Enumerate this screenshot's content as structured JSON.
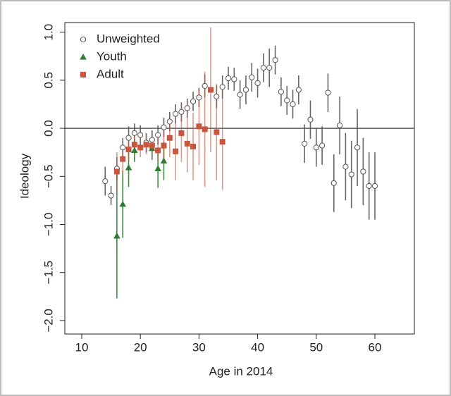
{
  "chart_data": {
    "type": "scatter",
    "xlabel": "Age in 2014",
    "ylabel": "Ideology",
    "xlim": [
      7.12,
      66.73
    ],
    "ylim": [
      -2.14,
      1.1
    ],
    "xticks": [
      10,
      20,
      30,
      40,
      50,
      60
    ],
    "yticks": [
      {
        "value": 1.0,
        "label": "1.0"
      },
      {
        "value": 0.5,
        "label": "0.5"
      },
      {
        "value": 0.0,
        "label": "0.0"
      },
      {
        "value": -0.5,
        "label": "−0.5"
      },
      {
        "value": -1.0,
        "label": "−1.0"
      },
      {
        "value": -1.5,
        "label": "−1.5"
      },
      {
        "value": -2.0,
        "label": "−2.0"
      }
    ],
    "hline": 0,
    "legend": "top-left",
    "series": [
      {
        "name": "Unweighted",
        "marker": "circle",
        "color": "#555555",
        "x": [
          14,
          15,
          16,
          17,
          18,
          19,
          20,
          21,
          22,
          23,
          24,
          25,
          26,
          27,
          28,
          29,
          30,
          31,
          33,
          34,
          35,
          36,
          37,
          38,
          39,
          40,
          41,
          42,
          43,
          44,
          45,
          46,
          47,
          48,
          49,
          50,
          51,
          52,
          53,
          54,
          55,
          56,
          57,
          58,
          59,
          60
        ],
        "values": [
          -0.55,
          -0.7,
          -0.42,
          -0.2,
          -0.1,
          -0.05,
          -0.07,
          -0.15,
          -0.12,
          -0.07,
          0.01,
          0.07,
          0.15,
          0.17,
          0.21,
          0.28,
          0.32,
          0.44,
          0.33,
          0.43,
          0.52,
          0.51,
          0.35,
          0.4,
          0.53,
          0.47,
          0.63,
          0.63,
          0.71,
          0.38,
          0.29,
          0.25,
          0.4,
          -0.16,
          0.09,
          -0.2,
          -0.18,
          0.37,
          -0.57,
          0.03,
          -0.4,
          -0.48,
          -0.2,
          -0.45,
          -0.6,
          -0.6
        ],
        "errors": [
          0.15,
          0.1,
          0.12,
          0.1,
          0.12,
          0.1,
          0.1,
          0.1,
          0.1,
          0.1,
          0.1,
          0.1,
          0.1,
          0.1,
          0.1,
          0.1,
          0.1,
          0.12,
          0.12,
          0.12,
          0.12,
          0.12,
          0.15,
          0.15,
          0.15,
          0.15,
          0.15,
          0.2,
          0.15,
          0.15,
          0.15,
          0.15,
          0.15,
          0.2,
          0.2,
          0.2,
          0.2,
          0.2,
          0.3,
          0.3,
          0.35,
          0.35,
          0.4,
          0.35,
          0.35,
          0.35
        ]
      },
      {
        "name": "Youth",
        "marker": "triangle",
        "color": "#2e7d32",
        "x": [
          16,
          17,
          18,
          19,
          22,
          23,
          24
        ],
        "values": [
          -1.12,
          -0.79,
          -0.41,
          -0.23,
          -0.21,
          -0.42,
          -0.34
        ],
        "errors": [
          0.65,
          0.35,
          0.2,
          0.12,
          0.12,
          0.2,
          0.2
        ]
      },
      {
        "name": "Adult",
        "marker": "square",
        "color": "#c8553d",
        "x": [
          16,
          17,
          18,
          19,
          20,
          21,
          22,
          23,
          24,
          25,
          26,
          27,
          28,
          29,
          30,
          31,
          32,
          33,
          34
        ],
        "values": [
          -0.45,
          -0.32,
          -0.22,
          -0.17,
          -0.2,
          -0.17,
          -0.18,
          -0.23,
          -0.18,
          -0.1,
          -0.24,
          -0.05,
          -0.16,
          -0.19,
          0.02,
          -0.01,
          0.4,
          -0.04,
          -0.14
        ],
        "errors": [
          0.2,
          0.15,
          0.12,
          0.1,
          0.1,
          0.1,
          0.1,
          0.1,
          0.15,
          0.2,
          0.3,
          0.3,
          0.3,
          0.35,
          0.4,
          0.6,
          0.65,
          0.5,
          0.5
        ]
      }
    ]
  }
}
